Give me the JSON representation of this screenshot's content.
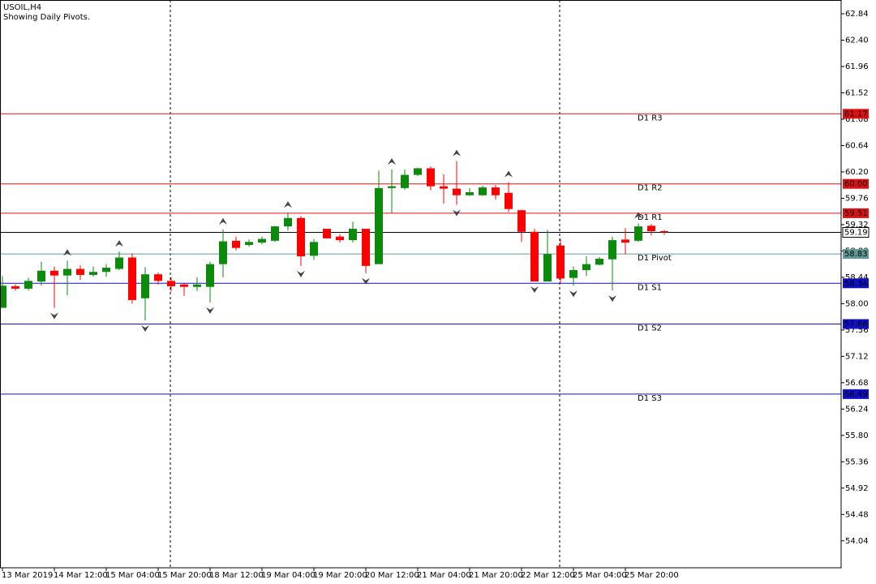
{
  "chart_data": {
    "type": "candlestick",
    "title": "USOIL,H4",
    "subtitle": "Showing Daily Pivots.",
    "categories": [
      "13 Mar 2019",
      null,
      null,
      null,
      "14 Mar 12:00",
      null,
      null,
      null,
      "15 Mar 04:00",
      null,
      null,
      null,
      "15 Mar 20:00",
      null,
      null,
      null,
      "18 Mar 12:00",
      null,
      null,
      null,
      "19 Mar 04:00",
      null,
      null,
      null,
      "19 Mar 20:00",
      null,
      null,
      null,
      "20 Mar 12:00",
      null,
      null,
      null,
      "21 Mar 04:00",
      null,
      null,
      null,
      "21 Mar 20:00",
      null,
      null,
      null,
      "22 Mar 12:00",
      null,
      null,
      null,
      "25 Mar 04:00",
      null,
      null,
      null,
      "25 Mar 20:00",
      null,
      null,
      null
    ],
    "open": [
      57.93,
      58.29,
      58.25,
      58.37,
      58.55,
      58.47,
      58.58,
      58.48,
      58.53,
      58.58,
      58.77,
      58.09,
      58.49,
      58.38,
      58.32,
      58.28,
      58.28,
      58.66,
      59.05,
      58.98,
      59.02,
      59.05,
      59.29,
      59.43,
      58.8,
      59.25,
      59.12,
      59.06,
      59.25,
      58.66,
      59.93,
      59.93,
      60.15,
      60.26,
      59.96,
      59.92,
      59.81,
      59.81,
      59.94,
      59.85,
      59.56,
      59.2,
      58.37,
      58.97,
      58.43,
      58.56,
      58.65,
      58.74,
      59.07,
      59.05,
      59.3,
      59.21
    ],
    "high": [
      58.46,
      58.32,
      58.43,
      58.7,
      58.62,
      58.72,
      58.64,
      58.62,
      58.66,
      58.87,
      58.84,
      58.61,
      58.52,
      58.44,
      58.35,
      58.44,
      58.7,
      59.24,
      59.12,
      59.07,
      59.12,
      59.3,
      59.52,
      59.46,
      59.08,
      59.25,
      59.16,
      59.37,
      59.25,
      60.22,
      60.24,
      60.24,
      60.27,
      60.29,
      60.16,
      60.38,
      59.93,
      59.97,
      59.98,
      60.03,
      59.57,
      59.25,
      59.23,
      59.08,
      58.62,
      58.79,
      58.78,
      59.12,
      59.26,
      59.34,
      59.33,
      59.23
    ],
    "low": [
      57.93,
      58.22,
      58.22,
      58.3,
      57.93,
      58.14,
      58.4,
      58.45,
      58.45,
      58.56,
      58.0,
      57.72,
      58.32,
      58.2,
      58.13,
      58.21,
      58.02,
      58.44,
      58.89,
      58.95,
      58.99,
      59.03,
      59.22,
      58.63,
      58.73,
      59.09,
      59.02,
      59.02,
      58.51,
      58.66,
      59.51,
      59.9,
      60.13,
      59.89,
      59.67,
      59.65,
      59.8,
      59.8,
      59.74,
      59.53,
      59.03,
      58.37,
      58.37,
      58.35,
      58.3,
      58.46,
      58.64,
      58.22,
      58.83,
      59.03,
      59.14,
      59.15
    ],
    "close": [
      58.3,
      58.25,
      58.38,
      58.55,
      58.47,
      58.58,
      58.48,
      58.53,
      58.6,
      58.77,
      58.06,
      58.49,
      58.38,
      58.29,
      58.28,
      58.32,
      58.66,
      59.04,
      58.93,
      59.03,
      59.08,
      59.29,
      59.43,
      58.79,
      59.03,
      59.09,
      59.06,
      59.25,
      58.63,
      59.93,
      59.96,
      60.15,
      60.26,
      59.96,
      59.92,
      59.81,
      59.86,
      59.94,
      59.81,
      59.58,
      59.2,
      58.37,
      58.83,
      58.42,
      58.56,
      58.66,
      58.75,
      59.06,
      59.02,
      59.29,
      59.21,
      59.19
    ],
    "up_color": "#0b8a0b",
    "down_color": "#ff0000",
    "ylim": [
      53.59,
      63.07
    ],
    "yticks": [
      {
        "value": 54.04,
        "label": "54.04"
      },
      54.48,
      54.92,
      {
        "value": 55.36,
        "label": "55.36"
      },
      {
        "value": 55.8,
        "label": "55.80"
      },
      56.24,
      56.68,
      57.12,
      57.56,
      {
        "value": 58,
        "label": "58.00"
      },
      58.44,
      58.88,
      59.32,
      59.76,
      {
        "value": 60.2,
        "label": "60.20"
      },
      60.64,
      61.08,
      61.52,
      61.96,
      {
        "value": 62.4,
        "label": "62.40"
      },
      62.84
    ],
    "levels": [
      {
        "name": "D1 R3",
        "value": 61.17,
        "color": "#e01010"
      },
      {
        "name": "D1 R2",
        "value": 60,
        "value_label": "60.00",
        "color": "#e01010"
      },
      {
        "name": "D1 R1",
        "value": 59.51,
        "color": "#e01010"
      },
      {
        "name": "D1 Pivot",
        "value": 58.83,
        "color": "#5f9a9a"
      },
      {
        "name": "D1 S1",
        "value": 58.34,
        "color": "#1010c8"
      },
      {
        "name": "D1 S2",
        "value": 57.66,
        "color": "#1010c8"
      },
      {
        "name": "D1 S3",
        "value": 56.49,
        "color": "#1010c8"
      }
    ],
    "current_price": 59.19,
    "fractals": {
      "up": [
        5,
        9,
        17,
        22,
        30,
        35,
        39,
        49
      ],
      "down": [
        4,
        11,
        16,
        23,
        28,
        35,
        41,
        44,
        47
      ]
    }
  }
}
